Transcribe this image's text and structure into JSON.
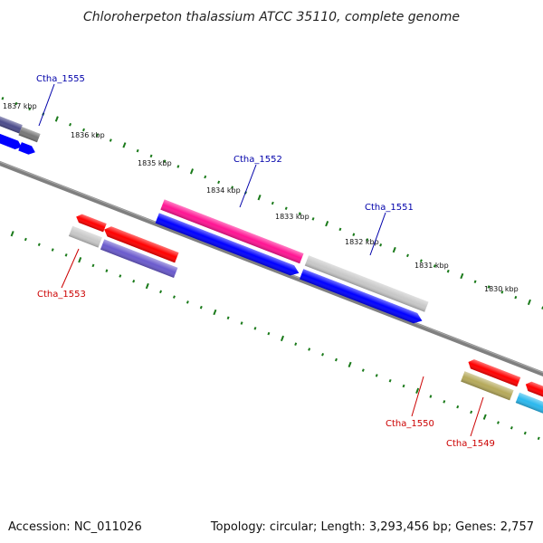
{
  "title": "Chloroherpeton thalassium ATCC 35110, complete genome",
  "footer": {
    "accession": "Accession: NC_011026",
    "summary": "Topology: circular; Length: 3,293,456 bp; Genes: 2,757"
  },
  "scale_labels": [
    "1837 kbp",
    "1836 kbp",
    "1835 kbp",
    "1834 kbp",
    "1833 kbp",
    "1832 kbp",
    "1831 kbp",
    "1830 kbp"
  ],
  "gene_labels": [
    {
      "text": "Ctha_1555",
      "color": "#0000aa"
    },
    {
      "text": "Ctha_1552",
      "color": "#0000aa"
    },
    {
      "text": "Ctha_1551",
      "color": "#0000aa"
    },
    {
      "text": "Ctha_1553",
      "color": "#cc0000"
    },
    {
      "text": "Ctha_1550",
      "color": "#cc0000"
    },
    {
      "text": "Ctha_1549",
      "color": "#cc0000"
    }
  ],
  "colors": {
    "backbone": "#808080",
    "tick": "#1a7a1a",
    "red": "#ff0000",
    "blue": "#0000ff",
    "magenta": "#ff1493",
    "light_gray": "#c8c8c8",
    "dark_gray": "#777777",
    "slate_blue": "#6a5acd",
    "dark_slate": "#4b4b8b",
    "olive": "#b5a95a",
    "cyan": "#2ab8ee"
  }
}
